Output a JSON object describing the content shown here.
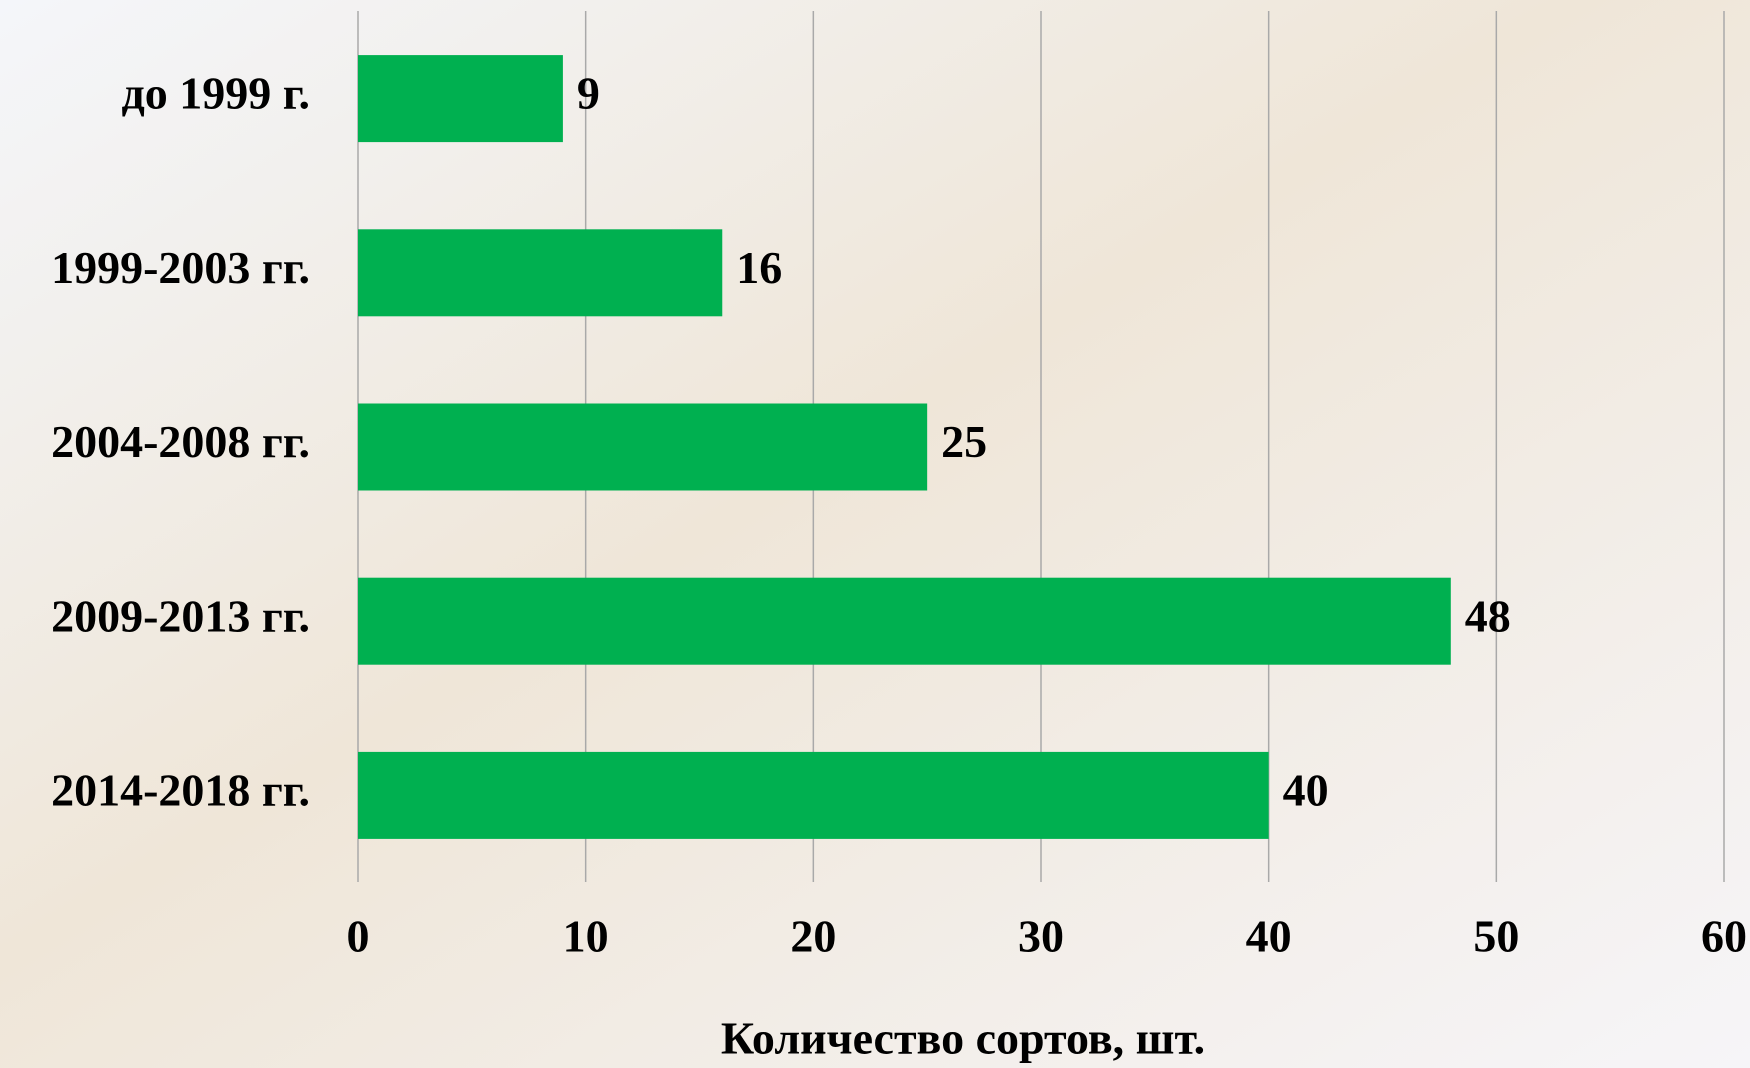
{
  "chart_data": {
    "type": "bar",
    "orientation": "horizontal",
    "categories": [
      "до 1999 г.",
      "1999-2003 гг.",
      "2004-2008 гг.",
      "2009-2013 гг.",
      "2014-2018 гг."
    ],
    "values": [
      9,
      16,
      25,
      48,
      40
    ],
    "color": "#00b050",
    "x_label": "Количество сортов, шт.",
    "xlim": [
      0,
      60
    ],
    "xticks": [
      0,
      10,
      20,
      30,
      40,
      50,
      60
    ],
    "grid": true
  }
}
